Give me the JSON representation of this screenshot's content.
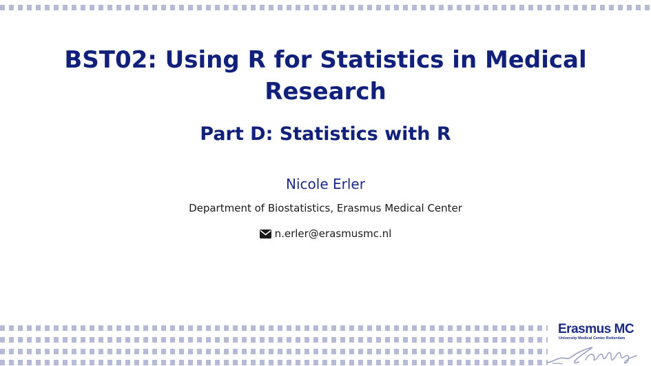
{
  "slide": {
    "title": "BST02: Using R for Statistics in Medical Research",
    "subtitle": "Part D: Statistics with R",
    "author": "Nicole Erler",
    "department": "Department of Biostatistics, Erasmus Medical Center",
    "email": "n.erler@erasmusmc.nl",
    "email_icon": "envelope-icon"
  },
  "logo": {
    "name": "Erasmus MC",
    "tagline": "University Medical Center Rotterdam",
    "signature": "Erasmus signature"
  },
  "colors": {
    "title": "#11207a",
    "author": "#1d2b86",
    "dots": "#b6bad6",
    "text": "#1a1a1a"
  }
}
